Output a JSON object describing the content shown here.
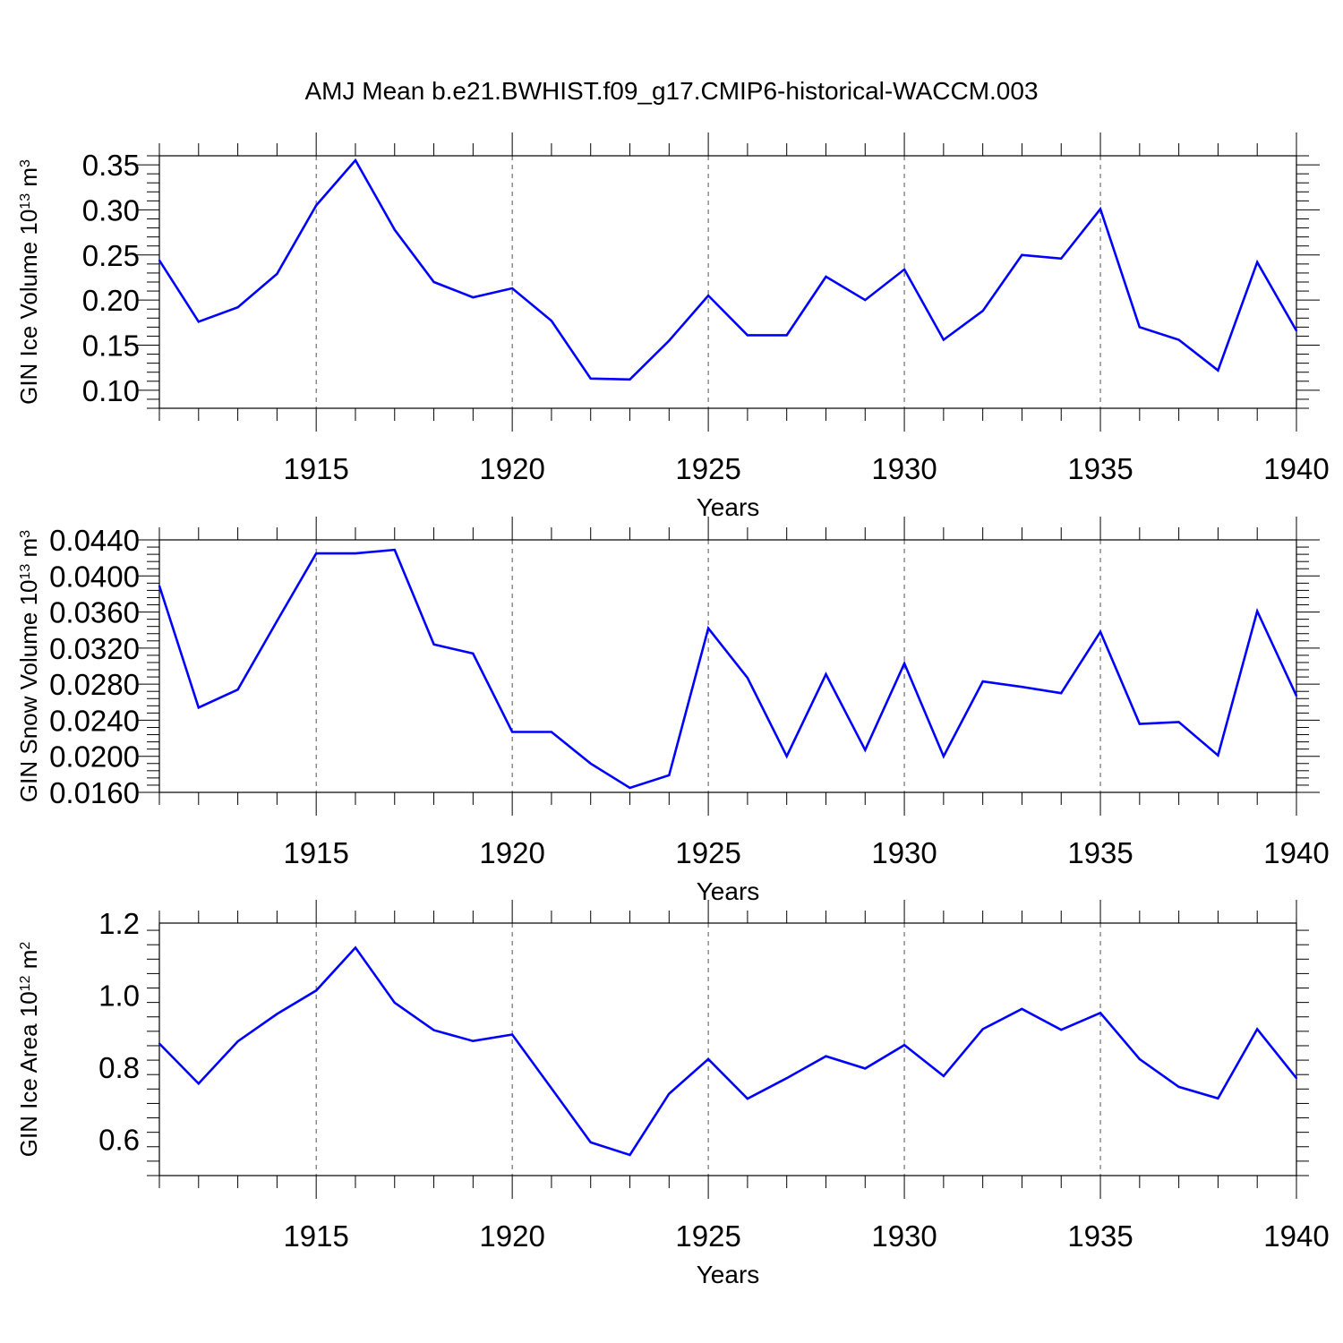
{
  "figure": {
    "title": "AMJ Mean b.e21.BWHIST.f09_g17.CMIP6-historical-WACCM.003",
    "line_color": "#0000ff"
  },
  "chart_data": [
    {
      "type": "line",
      "title": "",
      "ylabel": {
        "base": "GIN Ice Volume 10",
        "exp": "13",
        "unit": " m",
        "unit_exp": "3"
      },
      "xlabel": "Years",
      "xlim": [
        1911,
        1940
      ],
      "ylim": [
        0.08,
        0.36
      ],
      "x_ticks": [
        1915,
        1920,
        1925,
        1930,
        1935,
        1940
      ],
      "x_tick_labels": [
        "1915",
        "1920",
        "1925",
        "1930",
        "1935",
        "1940"
      ],
      "y_ticks": [
        0.1,
        0.15,
        0.2,
        0.25,
        0.3,
        0.35
      ],
      "y_tick_labels": [
        "0.10",
        "0.15",
        "0.20",
        "0.25",
        "0.30",
        "0.35"
      ],
      "x": [
        1911,
        1912,
        1913,
        1914,
        1915,
        1916,
        1917,
        1918,
        1919,
        1920,
        1921,
        1922,
        1923,
        1924,
        1925,
        1926,
        1927,
        1928,
        1929,
        1930,
        1931,
        1932,
        1933,
        1934,
        1935,
        1936,
        1937,
        1938,
        1939,
        1940
      ],
      "series": [
        {
          "name": "GIN Ice Volume",
          "values": [
            0.244,
            0.176,
            0.192,
            0.229,
            0.305,
            0.355,
            0.278,
            0.22,
            0.203,
            0.213,
            0.177,
            0.113,
            0.112,
            0.155,
            0.205,
            0.161,
            0.161,
            0.226,
            0.2,
            0.234,
            0.156,
            0.188,
            0.25,
            0.246,
            0.301,
            0.17,
            0.156,
            0.122,
            0.242,
            0.166
          ]
        }
      ]
    },
    {
      "type": "line",
      "title": "",
      "ylabel": {
        "base": "GIN Snow Volume 10",
        "exp": "13",
        "unit": " m",
        "unit_exp": "3"
      },
      "xlabel": "Years",
      "xlim": [
        1911,
        1940
      ],
      "ylim": [
        0.016,
        0.044
      ],
      "x_ticks": [
        1915,
        1920,
        1925,
        1930,
        1935,
        1940
      ],
      "x_tick_labels": [
        "1915",
        "1920",
        "1925",
        "1930",
        "1935",
        "1940"
      ],
      "y_ticks": [
        0.016,
        0.02,
        0.024,
        0.028,
        0.032,
        0.036,
        0.04,
        0.044
      ],
      "y_tick_labels": [
        "0.0160",
        "0.0200",
        "0.0240",
        "0.0280",
        "0.0320",
        "0.0360",
        "0.0400",
        "0.0440"
      ],
      "x": [
        1911,
        1912,
        1913,
        1914,
        1915,
        1916,
        1917,
        1918,
        1919,
        1920,
        1921,
        1922,
        1923,
        1924,
        1925,
        1926,
        1927,
        1928,
        1929,
        1930,
        1931,
        1932,
        1933,
        1934,
        1935,
        1936,
        1937,
        1938,
        1939,
        1940
      ],
      "series": [
        {
          "name": "GIN Snow Volume",
          "values": [
            0.0389,
            0.0254,
            0.0274,
            0.035,
            0.0425,
            0.0425,
            0.0429,
            0.0324,
            0.0314,
            0.0227,
            0.0227,
            0.0192,
            0.0165,
            0.0179,
            0.0342,
            0.0287,
            0.02,
            0.0291,
            0.0207,
            0.0303,
            0.02,
            0.0283,
            0.0277,
            0.027,
            0.0338,
            0.0236,
            0.0238,
            0.0201,
            0.0361,
            0.0267
          ]
        }
      ]
    },
    {
      "type": "line",
      "title": "",
      "ylabel": {
        "base": "GIN Ice Area 10",
        "exp": "12",
        "unit": " m",
        "unit_exp": "2"
      },
      "xlabel": "Years",
      "xlim": [
        1911,
        1940
      ],
      "ylim": [
        0.5,
        1.2
      ],
      "x_ticks": [
        1915,
        1920,
        1925,
        1930,
        1935,
        1940
      ],
      "x_tick_labels": [
        "1915",
        "1920",
        "1925",
        "1930",
        "1935",
        "1940"
      ],
      "y_ticks": [
        0.6,
        0.8,
        1.0,
        1.2
      ],
      "y_tick_labels": [
        "0.6",
        "0.8",
        "1.0",
        "1.2"
      ],
      "x": [
        1911,
        1912,
        1913,
        1914,
        1915,
        1916,
        1917,
        1918,
        1919,
        1920,
        1921,
        1922,
        1923,
        1924,
        1925,
        1926,
        1927,
        1928,
        1929,
        1930,
        1931,
        1932,
        1933,
        1934,
        1935,
        1936,
        1937,
        1938,
        1939,
        1940
      ],
      "series": [
        {
          "name": "GIN Ice Area",
          "values": [
            0.866,
            0.755,
            0.872,
            0.948,
            1.013,
            1.132,
            0.979,
            0.903,
            0.873,
            0.891,
            0.742,
            0.592,
            0.557,
            0.727,
            0.823,
            0.713,
            0.77,
            0.831,
            0.797,
            0.862,
            0.776,
            0.906,
            0.962,
            0.904,
            0.951,
            0.823,
            0.746,
            0.714,
            0.906,
            0.77
          ]
        }
      ]
    }
  ]
}
